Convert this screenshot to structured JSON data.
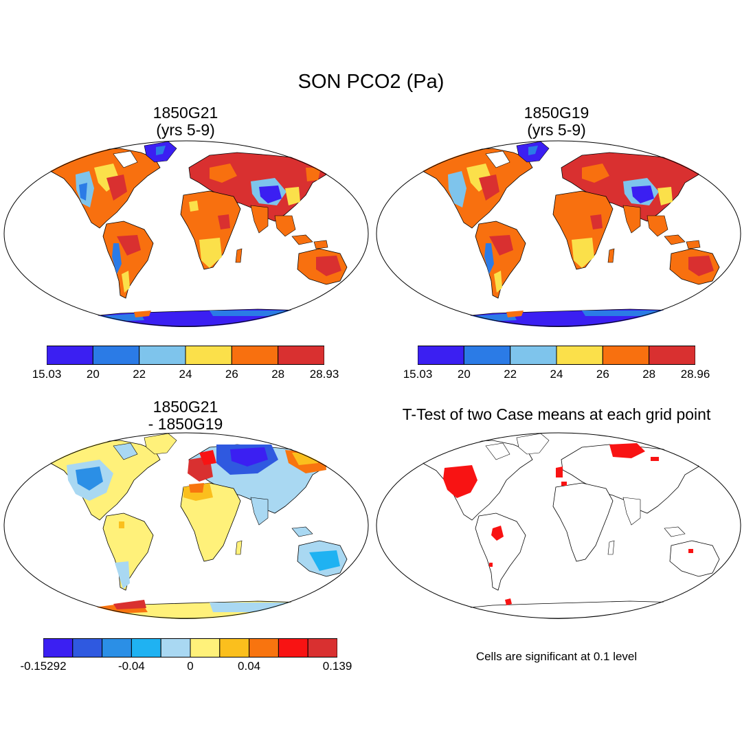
{
  "title": "SON PCO2 (Pa)",
  "panels": [
    {
      "id": "case1",
      "title_line1": "1850G21",
      "title_line2": "(yrs 5-9)"
    },
    {
      "id": "case2",
      "title_line1": "1850G19",
      "title_line2": "(yrs 5-9)"
    },
    {
      "id": "diff",
      "title_line1": "1850G21",
      "title_line2": "- 1850G19"
    },
    {
      "id": "ttest",
      "title_line1": "T-Test of two Case means at each grid point",
      "title_line2": ""
    }
  ],
  "colorbars": {
    "case1": {
      "colors": [
        "#3b1ff2",
        "#2b7be6",
        "#7ec4ec",
        "#fbe04a",
        "#f8700f",
        "#d93030"
      ],
      "labels": [
        "15.03",
        "20",
        "22",
        "24",
        "26",
        "28",
        "28.93"
      ]
    },
    "case2": {
      "colors": [
        "#3b1ff2",
        "#2b7be6",
        "#7ec4ec",
        "#fbe04a",
        "#f8700f",
        "#d93030"
      ],
      "labels": [
        "15.03",
        "20",
        "22",
        "24",
        "26",
        "28",
        "28.96"
      ]
    },
    "diff": {
      "colors": [
        "#3b1ff2",
        "#2f59e0",
        "#2b8fe6",
        "#1fb2f2",
        "#a9d8f2",
        "#fff17a",
        "#fbbf1d",
        "#f8740f",
        "#f81313",
        "#d93030"
      ],
      "labels": [
        "-0.15292",
        "-0.04",
        "0",
        "0.04",
        "0.139"
      ],
      "label_positions": [
        0,
        3,
        5,
        7,
        10
      ]
    }
  },
  "significance_note": "Cells are significant at 0.1 level",
  "colors": {
    "land_default": "#f8700f",
    "outline": "#000000",
    "significant": "#f81313"
  }
}
